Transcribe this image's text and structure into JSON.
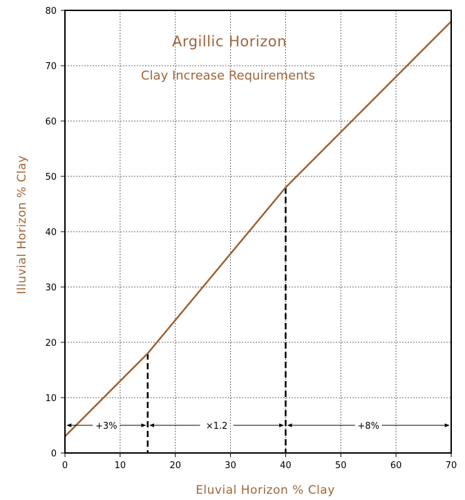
{
  "chart_data": {
    "type": "line",
    "title": "Argillic Horizon",
    "subtitle": "Clay Increase Requirements",
    "xlabel": "Eluvial Horizon % Clay",
    "ylabel": "Illuvial Horizon % Clay",
    "xlim": [
      0,
      70
    ],
    "ylim": [
      0,
      80
    ],
    "x_ticks": [
      0,
      10,
      20,
      30,
      40,
      50,
      60,
      70
    ],
    "y_ticks": [
      0,
      10,
      20,
      30,
      40,
      50,
      60,
      70,
      80
    ],
    "grid": true,
    "series": [
      {
        "x": [
          0,
          15,
          40,
          70
        ],
        "values": [
          3,
          18,
          48,
          78
        ]
      }
    ],
    "breakpoints": [
      {
        "x": 15,
        "y": 18
      },
      {
        "x": 40,
        "y": 48
      }
    ],
    "annotations": [
      {
        "label": "+3%",
        "from": 0,
        "to": 15,
        "y": 5
      },
      {
        "label": "×1.2",
        "from": 15,
        "to": 40,
        "y": 5
      },
      {
        "label": "+8%",
        "from": 40,
        "to": 70,
        "y": 5
      }
    ],
    "colors": {
      "line": "#9a6235",
      "text_accent": "#a0663a",
      "grid": "#666666",
      "frame": "#000000"
    }
  }
}
